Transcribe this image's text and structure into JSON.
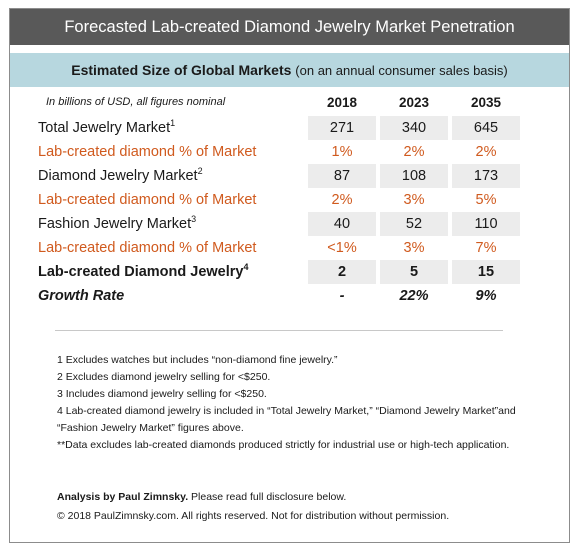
{
  "title": "Forecasted Lab-created Diamond Jewelry Market Penetration",
  "subtitle": {
    "main": "Estimated Size of Global Markets",
    "paren": "(on an annual consumer sales basis)"
  },
  "table": {
    "note": "In billions of USD, all figures nominal",
    "years": [
      "2018",
      "2023",
      "2035"
    ],
    "rows": [
      {
        "label": "Total Jewelry Market",
        "sup": "1",
        "values": [
          "271",
          "340",
          "645"
        ]
      },
      {
        "label": "Lab-created diamond % of Market",
        "sup": "",
        "values": [
          "1%",
          "2%",
          "2%"
        ]
      },
      {
        "label": "Diamond Jewelry Market",
        "sup": "2",
        "values": [
          "87",
          "108",
          "173"
        ]
      },
      {
        "label": "Lab-created diamond % of Market",
        "sup": "",
        "values": [
          "2%",
          "3%",
          "5%"
        ]
      },
      {
        "label": "Fashion Jewelry Market",
        "sup": "3",
        "values": [
          "40",
          "52",
          "110"
        ]
      },
      {
        "label": "Lab-created diamond % of Market",
        "sup": "",
        "values": [
          "<1%",
          "3%",
          "7%"
        ]
      },
      {
        "label": "Lab-created Diamond Jewelry",
        "sup": "4",
        "values": [
          "2",
          "5",
          "15"
        ]
      },
      {
        "label": "Growth Rate",
        "sup": "",
        "values": [
          "-",
          "22%",
          "9%"
        ]
      }
    ]
  },
  "footnotes": [
    "1 Excludes watches but includes “non-diamond fine jewelry.”",
    "2 Excludes diamond jewelry selling for <$250.",
    "3 Includes diamond jewelry selling for <$250.",
    "4 Lab-created diamond jewelry is included in “Total Jewelry Market,” “Diamond Jewelry Market”and “Fashion Jewelry Market” figures above.",
    "**Data excludes lab-created diamonds produced strictly for industrial use or high-tech application."
  ],
  "credits": {
    "analysis_bold": "Analysis by Paul Zimnsky.",
    "analysis_rest": " Please read full disclosure below.",
    "copyright": "© 2018 PaulZimnsky.com. All rights reserved. Not for distribution without permission."
  },
  "colors": {
    "title_bar": "#595959",
    "subtitle_bar": "#b7d7df",
    "accent_orange": "#d05a1e",
    "alt_row": "#ececec"
  }
}
